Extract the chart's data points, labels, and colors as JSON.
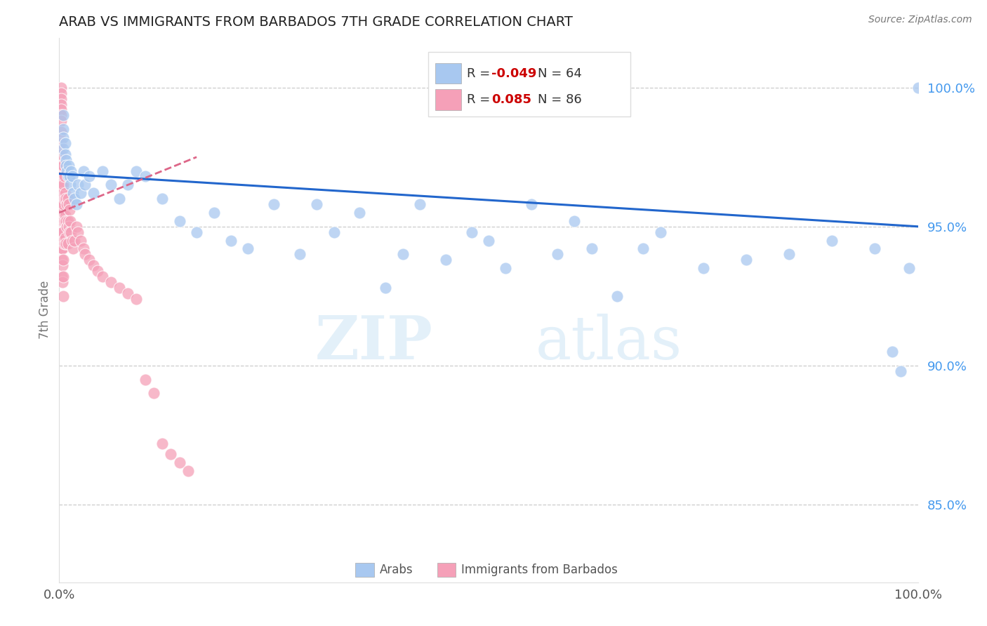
{
  "title": "ARAB VS IMMIGRANTS FROM BARBADOS 7TH GRADE CORRELATION CHART",
  "source_text": "Source: ZipAtlas.com",
  "ylabel": "7th Grade",
  "xlim": [
    0,
    1.0
  ],
  "ylim": [
    0.822,
    1.018
  ],
  "right_yticks": [
    0.85,
    0.9,
    0.95,
    1.0
  ],
  "right_yticklabels": [
    "85.0%",
    "90.0%",
    "95.0%",
    "100.0%"
  ],
  "xtick_labels": [
    "0.0%",
    "100.0%"
  ],
  "watermark_zip": "ZIP",
  "watermark_atlas": "atlas",
  "blue_color": "#a8c8f0",
  "pink_color": "#f5a0b8",
  "blue_line_color": "#2266cc",
  "pink_line_color": "#dd6688",
  "legend_blue_text1": "R = ",
  "legend_blue_val1": "-0.049",
  "legend_blue_n": "N = 64",
  "legend_pink_text2": "R =  ",
  "legend_pink_val2": "0.085",
  "legend_pink_n": "N = 86",
  "arab_x": [
    0.005,
    0.005,
    0.005,
    0.005,
    0.007,
    0.007,
    0.008,
    0.008,
    0.009,
    0.01,
    0.011,
    0.012,
    0.013,
    0.014,
    0.015,
    0.016,
    0.018,
    0.02,
    0.022,
    0.025,
    0.028,
    0.03,
    0.035,
    0.04,
    0.05,
    0.06,
    0.07,
    0.08,
    0.09,
    0.1,
    0.12,
    0.14,
    0.16,
    0.18,
    0.2,
    0.22,
    0.25,
    0.28,
    0.3,
    0.32,
    0.35,
    0.38,
    0.4,
    0.42,
    0.45,
    0.48,
    0.5,
    0.52,
    0.55,
    0.58,
    0.6,
    0.62,
    0.65,
    0.68,
    0.7,
    0.75,
    0.8,
    0.85,
    0.9,
    0.95,
    0.97,
    0.98,
    0.99,
    1.0
  ],
  "arab_y": [
    0.99,
    0.985,
    0.982,
    0.978,
    0.98,
    0.976,
    0.974,
    0.972,
    0.97,
    0.968,
    0.972,
    0.968,
    0.965,
    0.97,
    0.968,
    0.962,
    0.96,
    0.958,
    0.965,
    0.962,
    0.97,
    0.965,
    0.968,
    0.962,
    0.97,
    0.965,
    0.96,
    0.965,
    0.97,
    0.968,
    0.96,
    0.952,
    0.948,
    0.955,
    0.945,
    0.942,
    0.958,
    0.94,
    0.958,
    0.948,
    0.955,
    0.928,
    0.94,
    0.958,
    0.938,
    0.948,
    0.945,
    0.935,
    0.958,
    0.94,
    0.952,
    0.942,
    0.925,
    0.942,
    0.948,
    0.935,
    0.938,
    0.94,
    0.945,
    0.942,
    0.905,
    0.898,
    0.935,
    1.0
  ],
  "barbados_x": [
    0.002,
    0.002,
    0.002,
    0.002,
    0.002,
    0.002,
    0.002,
    0.002,
    0.002,
    0.002,
    0.002,
    0.002,
    0.002,
    0.002,
    0.002,
    0.002,
    0.002,
    0.002,
    0.002,
    0.002,
    0.003,
    0.003,
    0.003,
    0.003,
    0.003,
    0.003,
    0.003,
    0.003,
    0.004,
    0.004,
    0.004,
    0.004,
    0.004,
    0.004,
    0.004,
    0.005,
    0.005,
    0.005,
    0.005,
    0.005,
    0.005,
    0.005,
    0.005,
    0.006,
    0.006,
    0.006,
    0.006,
    0.007,
    0.007,
    0.007,
    0.008,
    0.008,
    0.008,
    0.009,
    0.009,
    0.01,
    0.01,
    0.01,
    0.011,
    0.011,
    0.012,
    0.012,
    0.013,
    0.014,
    0.015,
    0.016,
    0.018,
    0.02,
    0.022,
    0.025,
    0.028,
    0.03,
    0.035,
    0.04,
    0.045,
    0.05,
    0.06,
    0.07,
    0.08,
    0.09,
    0.1,
    0.11,
    0.12,
    0.13,
    0.14,
    0.15
  ],
  "barbados_y": [
    1.0,
    0.998,
    0.996,
    0.994,
    0.992,
    0.99,
    0.988,
    0.984,
    0.98,
    0.976,
    0.972,
    0.968,
    0.965,
    0.962,
    0.958,
    0.955,
    0.952,
    0.948,
    0.945,
    0.942,
    0.972,
    0.965,
    0.958,
    0.952,
    0.948,
    0.942,
    0.938,
    0.932,
    0.968,
    0.962,
    0.955,
    0.948,
    0.942,
    0.936,
    0.93,
    0.972,
    0.965,
    0.958,
    0.952,
    0.945,
    0.938,
    0.932,
    0.925,
    0.968,
    0.96,
    0.952,
    0.944,
    0.962,
    0.954,
    0.946,
    0.96,
    0.952,
    0.944,
    0.958,
    0.95,
    0.96,
    0.952,
    0.944,
    0.958,
    0.95,
    0.956,
    0.948,
    0.952,
    0.948,
    0.945,
    0.942,
    0.945,
    0.95,
    0.948,
    0.945,
    0.942,
    0.94,
    0.938,
    0.936,
    0.934,
    0.932,
    0.93,
    0.928,
    0.926,
    0.924,
    0.895,
    0.89,
    0.872,
    0.868,
    0.865,
    0.862
  ],
  "blue_line_x": [
    0.0,
    1.0
  ],
  "blue_line_y": [
    0.969,
    0.95
  ],
  "pink_line_x": [
    0.0,
    0.16
  ],
  "pink_line_y": [
    0.955,
    0.975
  ]
}
